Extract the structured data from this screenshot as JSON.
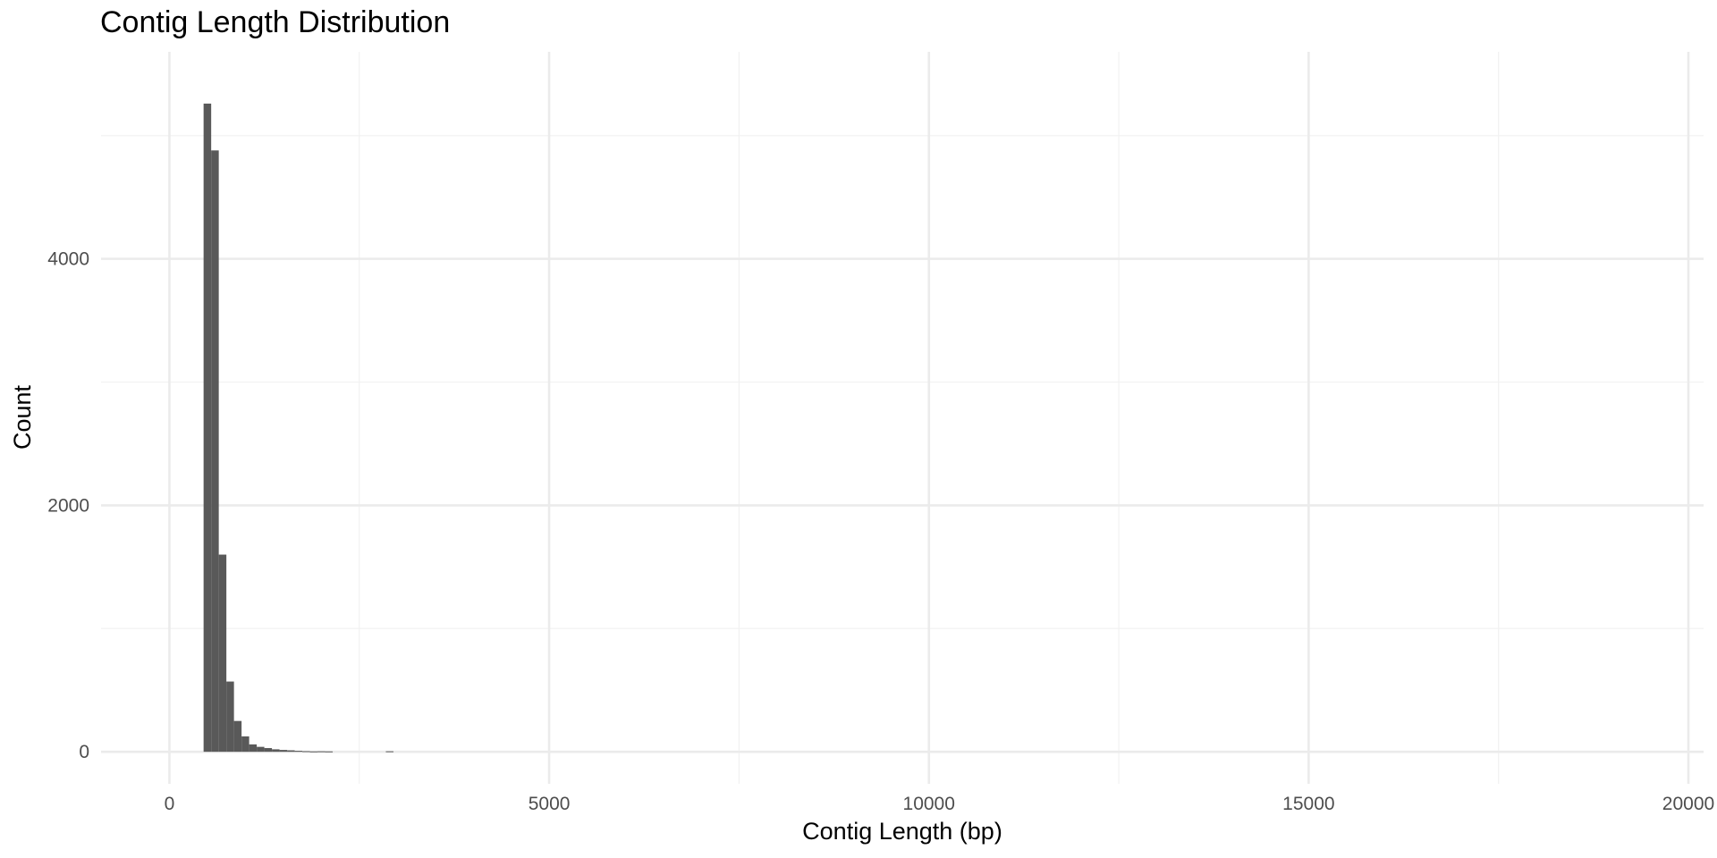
{
  "chart_data": {
    "type": "bar",
    "title": "Contig Length Distribution",
    "xlabel": "Contig Length (bp)",
    "ylabel": "Count",
    "xlim": [
      -900,
      20200
    ],
    "ylim": [
      -260,
      5680
    ],
    "x_ticks": [
      0,
      5000,
      10000,
      15000,
      20000
    ],
    "x_tick_labels": [
      "0",
      "5000",
      "10000",
      "15000",
      "20000"
    ],
    "x_minor_ticks": [
      2500,
      7500,
      12500,
      17500
    ],
    "y_ticks": [
      0,
      2000,
      4000
    ],
    "y_tick_labels": [
      "0",
      "2000",
      "4000"
    ],
    "y_minor_ticks": [
      1000,
      3000,
      5000
    ],
    "grid": true,
    "bar_color": "#595959",
    "bin_width": 100,
    "bins": [
      {
        "x0": 450,
        "x1": 550,
        "count": 5260
      },
      {
        "x0": 550,
        "x1": 650,
        "count": 4880
      },
      {
        "x0": 650,
        "x1": 750,
        "count": 1600
      },
      {
        "x0": 750,
        "x1": 850,
        "count": 570
      },
      {
        "x0": 850,
        "x1": 950,
        "count": 250
      },
      {
        "x0": 950,
        "x1": 1050,
        "count": 125
      },
      {
        "x0": 1050,
        "x1": 1150,
        "count": 60
      },
      {
        "x0": 1150,
        "x1": 1250,
        "count": 40
      },
      {
        "x0": 1250,
        "x1": 1350,
        "count": 30
      },
      {
        "x0": 1350,
        "x1": 1450,
        "count": 20
      },
      {
        "x0": 1450,
        "x1": 1550,
        "count": 15
      },
      {
        "x0": 1550,
        "x1": 1650,
        "count": 12
      },
      {
        "x0": 1650,
        "x1": 1750,
        "count": 8
      },
      {
        "x0": 1750,
        "x1": 1850,
        "count": 5
      },
      {
        "x0": 1850,
        "x1": 1950,
        "count": 3
      },
      {
        "x0": 1950,
        "x1": 2050,
        "count": 4
      },
      {
        "x0": 2050,
        "x1": 2150,
        "count": 3
      },
      {
        "x0": 2850,
        "x1": 2950,
        "count": 4
      }
    ]
  },
  "colors": {
    "background": "#ffffff",
    "grid_major": "#ebebeb",
    "grid_minor": "#f2f2f2",
    "tick_text": "#4d4d4d",
    "text": "#000000"
  }
}
